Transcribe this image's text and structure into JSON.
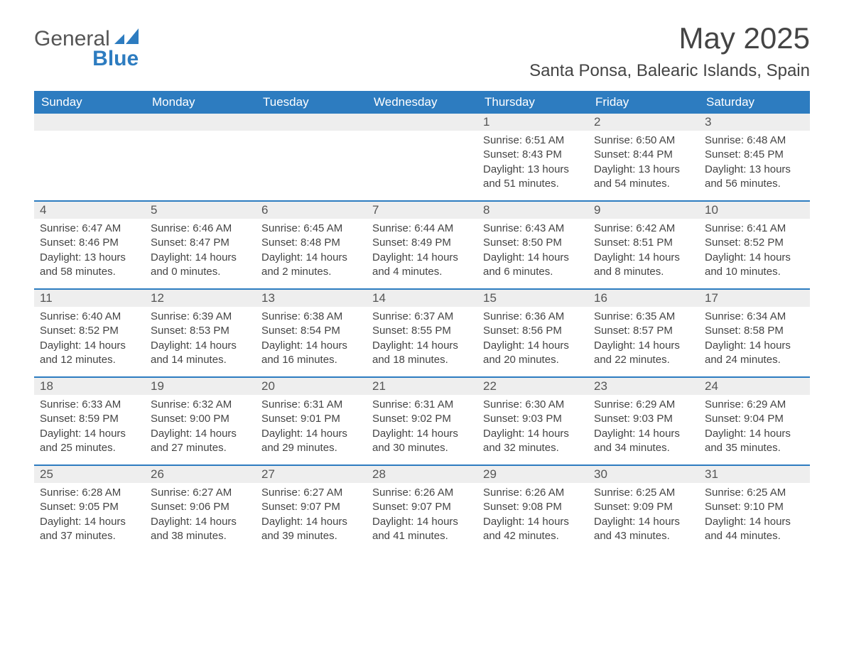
{
  "brand": {
    "name1": "General",
    "name2": "Blue"
  },
  "title": "May 2025",
  "location": "Santa Ponsa, Balearic Islands, Spain",
  "colors": {
    "header_bg": "#2d7cc0",
    "header_text": "#ffffff",
    "daynum_bg": "#eeeeee",
    "text": "#444444",
    "page_bg": "#ffffff"
  },
  "daynames": [
    "Sunday",
    "Monday",
    "Tuesday",
    "Wednesday",
    "Thursday",
    "Friday",
    "Saturday"
  ],
  "weeks": [
    [
      {
        "blank": true
      },
      {
        "blank": true
      },
      {
        "blank": true
      },
      {
        "blank": true
      },
      {
        "n": "1",
        "sr": "Sunrise: 6:51 AM",
        "ss": "Sunset: 8:43 PM",
        "d1": "Daylight: 13 hours",
        "d2": "and 51 minutes."
      },
      {
        "n": "2",
        "sr": "Sunrise: 6:50 AM",
        "ss": "Sunset: 8:44 PM",
        "d1": "Daylight: 13 hours",
        "d2": "and 54 minutes."
      },
      {
        "n": "3",
        "sr": "Sunrise: 6:48 AM",
        "ss": "Sunset: 8:45 PM",
        "d1": "Daylight: 13 hours",
        "d2": "and 56 minutes."
      }
    ],
    [
      {
        "n": "4",
        "sr": "Sunrise: 6:47 AM",
        "ss": "Sunset: 8:46 PM",
        "d1": "Daylight: 13 hours",
        "d2": "and 58 minutes."
      },
      {
        "n": "5",
        "sr": "Sunrise: 6:46 AM",
        "ss": "Sunset: 8:47 PM",
        "d1": "Daylight: 14 hours",
        "d2": "and 0 minutes."
      },
      {
        "n": "6",
        "sr": "Sunrise: 6:45 AM",
        "ss": "Sunset: 8:48 PM",
        "d1": "Daylight: 14 hours",
        "d2": "and 2 minutes."
      },
      {
        "n": "7",
        "sr": "Sunrise: 6:44 AM",
        "ss": "Sunset: 8:49 PM",
        "d1": "Daylight: 14 hours",
        "d2": "and 4 minutes."
      },
      {
        "n": "8",
        "sr": "Sunrise: 6:43 AM",
        "ss": "Sunset: 8:50 PM",
        "d1": "Daylight: 14 hours",
        "d2": "and 6 minutes."
      },
      {
        "n": "9",
        "sr": "Sunrise: 6:42 AM",
        "ss": "Sunset: 8:51 PM",
        "d1": "Daylight: 14 hours",
        "d2": "and 8 minutes."
      },
      {
        "n": "10",
        "sr": "Sunrise: 6:41 AM",
        "ss": "Sunset: 8:52 PM",
        "d1": "Daylight: 14 hours",
        "d2": "and 10 minutes."
      }
    ],
    [
      {
        "n": "11",
        "sr": "Sunrise: 6:40 AM",
        "ss": "Sunset: 8:52 PM",
        "d1": "Daylight: 14 hours",
        "d2": "and 12 minutes."
      },
      {
        "n": "12",
        "sr": "Sunrise: 6:39 AM",
        "ss": "Sunset: 8:53 PM",
        "d1": "Daylight: 14 hours",
        "d2": "and 14 minutes."
      },
      {
        "n": "13",
        "sr": "Sunrise: 6:38 AM",
        "ss": "Sunset: 8:54 PM",
        "d1": "Daylight: 14 hours",
        "d2": "and 16 minutes."
      },
      {
        "n": "14",
        "sr": "Sunrise: 6:37 AM",
        "ss": "Sunset: 8:55 PM",
        "d1": "Daylight: 14 hours",
        "d2": "and 18 minutes."
      },
      {
        "n": "15",
        "sr": "Sunrise: 6:36 AM",
        "ss": "Sunset: 8:56 PM",
        "d1": "Daylight: 14 hours",
        "d2": "and 20 minutes."
      },
      {
        "n": "16",
        "sr": "Sunrise: 6:35 AM",
        "ss": "Sunset: 8:57 PM",
        "d1": "Daylight: 14 hours",
        "d2": "and 22 minutes."
      },
      {
        "n": "17",
        "sr": "Sunrise: 6:34 AM",
        "ss": "Sunset: 8:58 PM",
        "d1": "Daylight: 14 hours",
        "d2": "and 24 minutes."
      }
    ],
    [
      {
        "n": "18",
        "sr": "Sunrise: 6:33 AM",
        "ss": "Sunset: 8:59 PM",
        "d1": "Daylight: 14 hours",
        "d2": "and 25 minutes."
      },
      {
        "n": "19",
        "sr": "Sunrise: 6:32 AM",
        "ss": "Sunset: 9:00 PM",
        "d1": "Daylight: 14 hours",
        "d2": "and 27 minutes."
      },
      {
        "n": "20",
        "sr": "Sunrise: 6:31 AM",
        "ss": "Sunset: 9:01 PM",
        "d1": "Daylight: 14 hours",
        "d2": "and 29 minutes."
      },
      {
        "n": "21",
        "sr": "Sunrise: 6:31 AM",
        "ss": "Sunset: 9:02 PM",
        "d1": "Daylight: 14 hours",
        "d2": "and 30 minutes."
      },
      {
        "n": "22",
        "sr": "Sunrise: 6:30 AM",
        "ss": "Sunset: 9:03 PM",
        "d1": "Daylight: 14 hours",
        "d2": "and 32 minutes."
      },
      {
        "n": "23",
        "sr": "Sunrise: 6:29 AM",
        "ss": "Sunset: 9:03 PM",
        "d1": "Daylight: 14 hours",
        "d2": "and 34 minutes."
      },
      {
        "n": "24",
        "sr": "Sunrise: 6:29 AM",
        "ss": "Sunset: 9:04 PM",
        "d1": "Daylight: 14 hours",
        "d2": "and 35 minutes."
      }
    ],
    [
      {
        "n": "25",
        "sr": "Sunrise: 6:28 AM",
        "ss": "Sunset: 9:05 PM",
        "d1": "Daylight: 14 hours",
        "d2": "and 37 minutes."
      },
      {
        "n": "26",
        "sr": "Sunrise: 6:27 AM",
        "ss": "Sunset: 9:06 PM",
        "d1": "Daylight: 14 hours",
        "d2": "and 38 minutes."
      },
      {
        "n": "27",
        "sr": "Sunrise: 6:27 AM",
        "ss": "Sunset: 9:07 PM",
        "d1": "Daylight: 14 hours",
        "d2": "and 39 minutes."
      },
      {
        "n": "28",
        "sr": "Sunrise: 6:26 AM",
        "ss": "Sunset: 9:07 PM",
        "d1": "Daylight: 14 hours",
        "d2": "and 41 minutes."
      },
      {
        "n": "29",
        "sr": "Sunrise: 6:26 AM",
        "ss": "Sunset: 9:08 PM",
        "d1": "Daylight: 14 hours",
        "d2": "and 42 minutes."
      },
      {
        "n": "30",
        "sr": "Sunrise: 6:25 AM",
        "ss": "Sunset: 9:09 PM",
        "d1": "Daylight: 14 hours",
        "d2": "and 43 minutes."
      },
      {
        "n": "31",
        "sr": "Sunrise: 6:25 AM",
        "ss": "Sunset: 9:10 PM",
        "d1": "Daylight: 14 hours",
        "d2": "and 44 minutes."
      }
    ]
  ]
}
